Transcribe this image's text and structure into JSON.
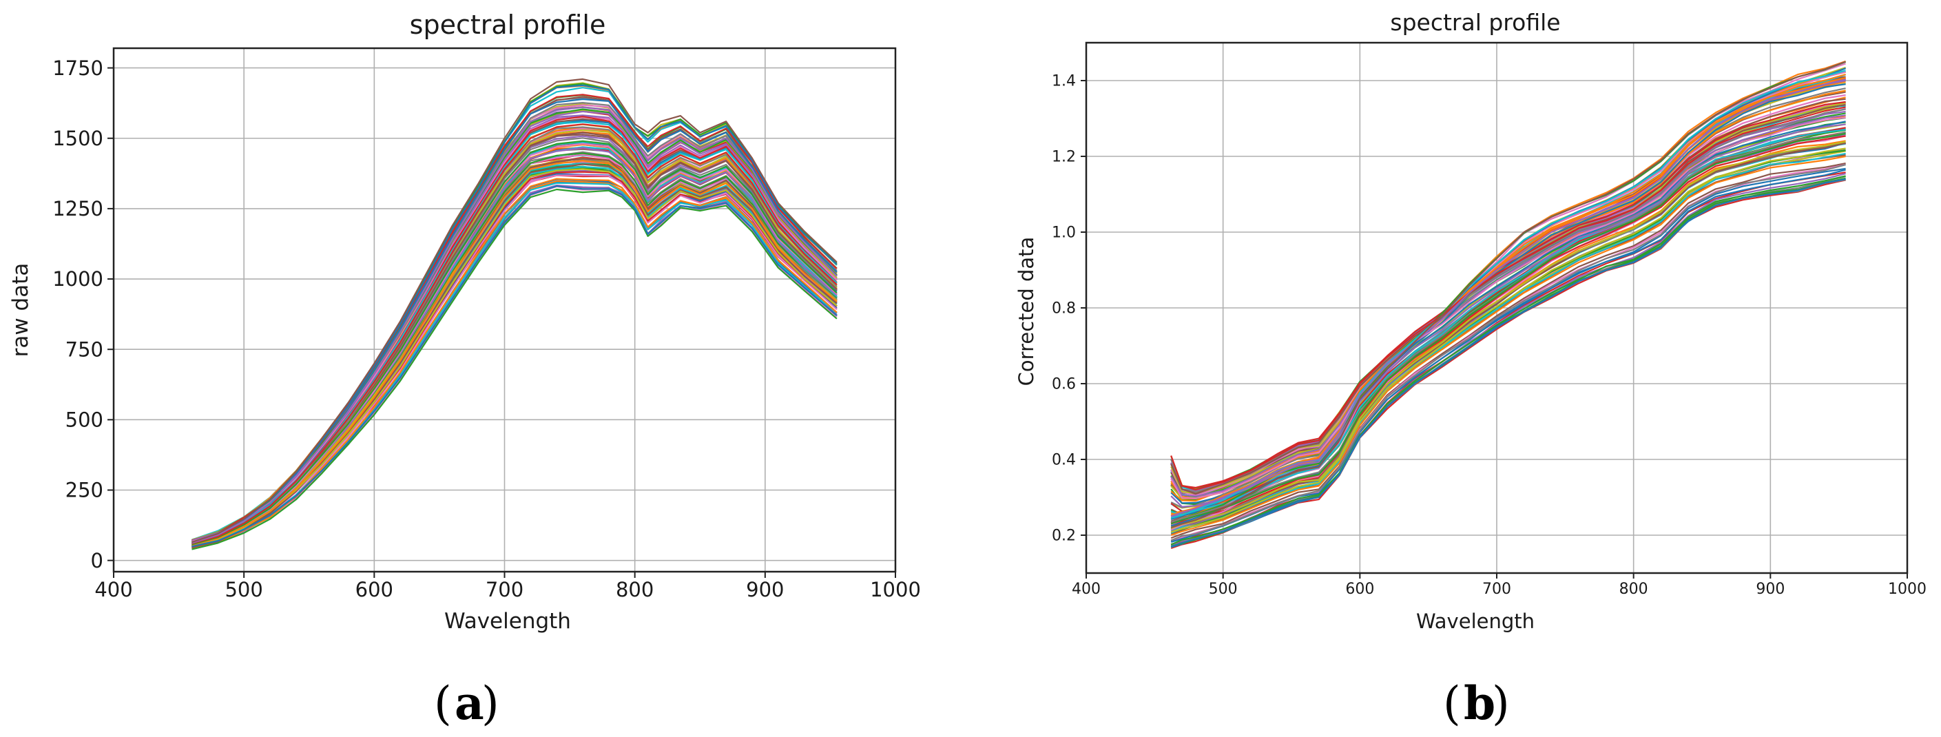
{
  "palette": [
    "#1f77b4",
    "#ff7f0e",
    "#2ca02c",
    "#d62728",
    "#9467bd",
    "#8c564b",
    "#e377c2",
    "#7f7f7f",
    "#bcbd22",
    "#17becf"
  ],
  "chart_data": [
    {
      "type": "line",
      "panel": "a",
      "caption_letter": "a",
      "title": "spectral profile",
      "xlabel": "Wavelength",
      "ylabel": "raw data",
      "xlim": [
        400,
        1000
      ],
      "ylim": [
        -40,
        1820
      ],
      "xticks": [
        400,
        500,
        600,
        700,
        800,
        900,
        1000
      ],
      "yticks": [
        0,
        250,
        500,
        750,
        1000,
        1250,
        1500,
        1750
      ],
      "xtick_labels": [
        "400",
        "500",
        "600",
        "700",
        "800",
        "900",
        "1000"
      ],
      "ytick_labels": [
        "0",
        "250",
        "500",
        "750",
        "1000",
        "1250",
        "1500",
        "1750"
      ],
      "grid": true,
      "legend": "none",
      "series_count": 90,
      "x": [
        460,
        480,
        500,
        520,
        540,
        560,
        580,
        600,
        620,
        640,
        660,
        680,
        700,
        720,
        740,
        760,
        780,
        790,
        800,
        810,
        820,
        835,
        850,
        870,
        890,
        910,
        930,
        955
      ],
      "series": [
        {
          "values": [
            50,
            70,
            110,
            160,
            230,
            320,
            420,
            530,
            650,
            790,
            930,
            1070,
            1200,
            1300,
            1330,
            1320,
            1320,
            1300,
            1250,
            1160,
            1200,
            1260,
            1250,
            1270,
            1180,
            1050,
            970,
            870
          ]
        },
        {
          "values": [
            55,
            78,
            120,
            175,
            255,
            355,
            460,
            580,
            710,
            860,
            1010,
            1150,
            1290,
            1390,
            1410,
            1420,
            1410,
            1380,
            1320,
            1240,
            1280,
            1330,
            1300,
            1340,
            1250,
            1110,
            1020,
            920
          ]
        },
        {
          "values": [
            57,
            82,
            127,
            185,
            270,
            375,
            485,
            610,
            745,
            900,
            1055,
            1200,
            1345,
            1450,
            1480,
            1490,
            1480,
            1440,
            1390,
            1300,
            1350,
            1390,
            1360,
            1400,
            1300,
            1150,
            1060,
            950
          ]
        },
        {
          "values": [
            60,
            85,
            132,
            193,
            282,
            390,
            505,
            635,
            775,
            935,
            1095,
            1245,
            1390,
            1500,
            1540,
            1550,
            1540,
            1500,
            1440,
            1360,
            1400,
            1440,
            1410,
            1450,
            1340,
            1190,
            1090,
            980
          ]
        },
        {
          "values": [
            62,
            90,
            140,
            205,
            298,
            410,
            530,
            665,
            810,
            975,
            1140,
            1290,
            1440,
            1560,
            1600,
            1610,
            1600,
            1550,
            1490,
            1420,
            1460,
            1500,
            1460,
            1500,
            1390,
            1230,
            1130,
            1010
          ]
        },
        {
          "values": [
            65,
            95,
            148,
            218,
            315,
            435,
            560,
            700,
            850,
            1020,
            1190,
            1340,
            1500,
            1640,
            1700,
            1710,
            1690,
            1620,
            1550,
            1520,
            1560,
            1580,
            1520,
            1560,
            1430,
            1270,
            1170,
            1060
          ]
        }
      ]
    },
    {
      "type": "line",
      "panel": "b",
      "caption_letter": "b",
      "title": "spectral profile",
      "xlabel": "Wavelength",
      "ylabel": "Corrected data",
      "xlim": [
        400,
        1000
      ],
      "ylim": [
        0.1,
        1.5
      ],
      "xticks": [
        400,
        500,
        600,
        700,
        800,
        900,
        1000
      ],
      "yticks": [
        0.2,
        0.4,
        0.6,
        0.8,
        1.0,
        1.2,
        1.4
      ],
      "xtick_labels": [
        "400",
        "500",
        "600",
        "700",
        "800",
        "900",
        "1000"
      ],
      "ytick_labels": [
        "0.2",
        "0.4",
        "0.6",
        "0.8",
        "1.0",
        "1.2",
        "1.4"
      ],
      "grid": true,
      "legend": "none",
      "series_count": 90,
      "x": [
        462,
        470,
        480,
        500,
        520,
        540,
        555,
        570,
        585,
        600,
        620,
        640,
        660,
        680,
        700,
        720,
        740,
        760,
        780,
        800,
        820,
        840,
        860,
        880,
        900,
        920,
        940,
        955
      ],
      "series": [
        {
          "values": [
            0.17,
            0.18,
            0.19,
            0.21,
            0.24,
            0.27,
            0.29,
            0.3,
            0.36,
            0.46,
            0.54,
            0.6,
            0.65,
            0.7,
            0.75,
            0.79,
            0.83,
            0.87,
            0.9,
            0.92,
            0.96,
            1.03,
            1.07,
            1.09,
            1.1,
            1.11,
            1.13,
            1.14
          ]
        },
        {
          "values": [
            0.2,
            0.21,
            0.22,
            0.24,
            0.27,
            0.3,
            0.32,
            0.33,
            0.39,
            0.49,
            0.58,
            0.64,
            0.69,
            0.74,
            0.79,
            0.84,
            0.88,
            0.92,
            0.95,
            0.98,
            1.02,
            1.09,
            1.13,
            1.15,
            1.17,
            1.18,
            1.19,
            1.2
          ]
        },
        {
          "values": [
            0.23,
            0.24,
            0.25,
            0.27,
            0.3,
            0.33,
            0.35,
            0.36,
            0.42,
            0.52,
            0.61,
            0.67,
            0.72,
            0.78,
            0.83,
            0.88,
            0.93,
            0.97,
            1.0,
            1.03,
            1.07,
            1.14,
            1.18,
            1.2,
            1.22,
            1.24,
            1.25,
            1.26
          ]
        },
        {
          "values": [
            0.41,
            0.33,
            0.32,
            0.34,
            0.37,
            0.41,
            0.44,
            0.45,
            0.52,
            0.6,
            0.67,
            0.73,
            0.78,
            0.84,
            0.89,
            0.93,
            0.97,
            1.01,
            1.03,
            1.06,
            1.11,
            1.18,
            1.23,
            1.26,
            1.28,
            1.3,
            1.32,
            1.33
          ]
        },
        {
          "values": [
            0.25,
            0.26,
            0.27,
            0.3,
            0.33,
            0.37,
            0.39,
            0.4,
            0.47,
            0.57,
            0.65,
            0.71,
            0.77,
            0.84,
            0.9,
            0.95,
            1.0,
            1.03,
            1.06,
            1.09,
            1.14,
            1.22,
            1.28,
            1.32,
            1.35,
            1.37,
            1.39,
            1.4
          ]
        },
        {
          "values": [
            0.22,
            0.23,
            0.24,
            0.27,
            0.31,
            0.35,
            0.37,
            0.38,
            0.45,
            0.56,
            0.64,
            0.71,
            0.78,
            0.86,
            0.93,
            1.0,
            1.04,
            1.07,
            1.1,
            1.14,
            1.19,
            1.26,
            1.31,
            1.35,
            1.38,
            1.41,
            1.43,
            1.45
          ]
        }
      ]
    }
  ]
}
